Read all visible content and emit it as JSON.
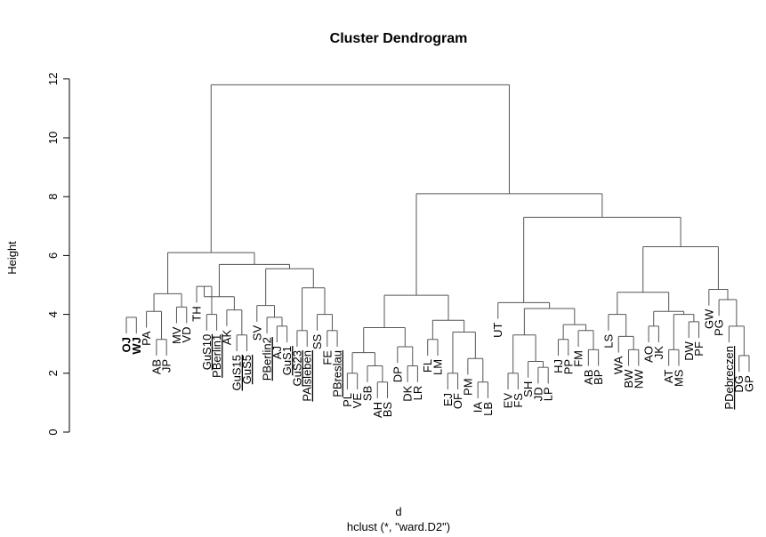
{
  "chart_data": {
    "type": "dendrogram",
    "title": "Cluster Dendrogram",
    "ylabel": "Height",
    "xlabel": "d",
    "sub": "hclust (*, \"ward.D2\")",
    "ylim": [
      0,
      12
    ],
    "yticks": [
      0,
      2,
      4,
      6,
      8,
      10,
      12
    ],
    "leaves": [
      {
        "label": "OJ",
        "style": "bold"
      },
      {
        "label": "WJ",
        "style": "bold"
      },
      {
        "label": "PA"
      },
      {
        "label": "AB"
      },
      {
        "label": "JP"
      },
      {
        "label": "MV"
      },
      {
        "label": "VD"
      },
      {
        "label": "TH"
      },
      {
        "label": "GuS10",
        "style": "underline"
      },
      {
        "label": "PBerlin1",
        "style": "underline"
      },
      {
        "label": "AK"
      },
      {
        "label": "GuS15",
        "style": "underline"
      },
      {
        "label": "GuS5",
        "style": "underline"
      },
      {
        "label": "SV"
      },
      {
        "label": "PBerlin2",
        "style": "underline"
      },
      {
        "label": "AJ"
      },
      {
        "label": "GuS1",
        "style": "underline"
      },
      {
        "label": "GuS23",
        "style": "underline"
      },
      {
        "label": "PAlsleben",
        "style": "underline"
      },
      {
        "label": "SS"
      },
      {
        "label": "FE"
      },
      {
        "label": "PBreslau",
        "style": "underline"
      },
      {
        "label": "PL"
      },
      {
        "label": "VE"
      },
      {
        "label": "SB"
      },
      {
        "label": "AH"
      },
      {
        "label": "BS"
      },
      {
        "label": "DP"
      },
      {
        "label": "DK"
      },
      {
        "label": "LR"
      },
      {
        "label": "FL"
      },
      {
        "label": "LM"
      },
      {
        "label": "EJ"
      },
      {
        "label": "OF"
      },
      {
        "label": "PM"
      },
      {
        "label": "IA"
      },
      {
        "label": "LB"
      },
      {
        "label": "UT"
      },
      {
        "label": "EV"
      },
      {
        "label": "FS"
      },
      {
        "label": "SH"
      },
      {
        "label": "JD"
      },
      {
        "label": "LP"
      },
      {
        "label": "HJ"
      },
      {
        "label": "PP"
      },
      {
        "label": "FM"
      },
      {
        "label": "AB"
      },
      {
        "label": "BP"
      },
      {
        "label": "LS"
      },
      {
        "label": "WA"
      },
      {
        "label": "BW"
      },
      {
        "label": "NW"
      },
      {
        "label": "AO"
      },
      {
        "label": "JK"
      },
      {
        "label": "AT"
      },
      {
        "label": "MS"
      },
      {
        "label": "DW"
      },
      {
        "label": "PF"
      },
      {
        "label": "GW"
      },
      {
        "label": "PG"
      },
      {
        "label": "PDebreczen",
        "style": "underline"
      },
      {
        "label": "DG"
      },
      {
        "label": "GP"
      }
    ],
    "merges": [
      {
        "id": "m1",
        "children": [
          "L0",
          "L1"
        ],
        "height": 3.9
      },
      {
        "id": "m2",
        "children": [
          "L3",
          "L4"
        ],
        "height": 3.15
      },
      {
        "id": "m3",
        "children": [
          "L2",
          "m2"
        ],
        "height": 4.1
      },
      {
        "id": "m4",
        "children": [
          "L5",
          "L6"
        ],
        "height": 4.25
      },
      {
        "id": "m5",
        "children": [
          "m3",
          "m4"
        ],
        "height": 4.7
      },
      {
        "id": "m6",
        "children": [
          "L8",
          "L9"
        ],
        "height": 4.0
      },
      {
        "id": "m7",
        "children": [
          "L7",
          "m6"
        ],
        "height": 4.95
      },
      {
        "id": "m8",
        "children": [
          "L11",
          "L12"
        ],
        "height": 3.3
      },
      {
        "id": "m9",
        "children": [
          "L10",
          "m8"
        ],
        "height": 4.15
      },
      {
        "id": "m10",
        "children": [
          "m7",
          "m9"
        ],
        "height": 4.6
      },
      {
        "id": "m11",
        "children": [
          "L15",
          "L16"
        ],
        "height": 3.6
      },
      {
        "id": "m12",
        "children": [
          "L14",
          "m11"
        ],
        "height": 3.9
      },
      {
        "id": "m13",
        "children": [
          "L13",
          "m12"
        ],
        "height": 4.3
      },
      {
        "id": "m14",
        "children": [
          "L17",
          "L18"
        ],
        "height": 3.45
      },
      {
        "id": "m15",
        "children": [
          "L20",
          "L21"
        ],
        "height": 3.45
      },
      {
        "id": "m16",
        "children": [
          "L19",
          "m15"
        ],
        "height": 4.0
      },
      {
        "id": "m17",
        "children": [
          "m14",
          "m16"
        ],
        "height": 4.9
      },
      {
        "id": "m18",
        "children": [
          "m13",
          "m17"
        ],
        "height": 5.55
      },
      {
        "id": "m19",
        "children": [
          "m10",
          "m18"
        ],
        "height": 5.7
      },
      {
        "id": "m20",
        "children": [
          "m5",
          "m19"
        ],
        "height": 6.1
      },
      {
        "id": "m21",
        "children": [
          "L22",
          "L23"
        ],
        "height": 2.0
      },
      {
        "id": "m22",
        "children": [
          "L25",
          "L26"
        ],
        "height": 1.7
      },
      {
        "id": "m23",
        "children": [
          "L24",
          "m22"
        ],
        "height": 2.25
      },
      {
        "id": "m24",
        "children": [
          "m21",
          "m23"
        ],
        "height": 2.7
      },
      {
        "id": "m25",
        "children": [
          "L28",
          "L29"
        ],
        "height": 2.25
      },
      {
        "id": "m26",
        "children": [
          "L27",
          "m25"
        ],
        "height": 2.9
      },
      {
        "id": "m27",
        "children": [
          "m24",
          "m26"
        ],
        "height": 3.55
      },
      {
        "id": "m28",
        "children": [
          "L30",
          "L31"
        ],
        "height": 3.15
      },
      {
        "id": "m29",
        "children": [
          "L32",
          "L33"
        ],
        "height": 2.0
      },
      {
        "id": "m30",
        "children": [
          "L35",
          "L36"
        ],
        "height": 1.7
      },
      {
        "id": "m31",
        "children": [
          "L34",
          "m30"
        ],
        "height": 2.5
      },
      {
        "id": "m32",
        "children": [
          "m29",
          "m31"
        ],
        "height": 3.4
      },
      {
        "id": "m33",
        "children": [
          "m28",
          "m32"
        ],
        "height": 3.8
      },
      {
        "id": "m34",
        "children": [
          "m27",
          "m33"
        ],
        "height": 4.65
      },
      {
        "id": "m35",
        "children": [
          "L38",
          "L39"
        ],
        "height": 2.0
      },
      {
        "id": "m36",
        "children": [
          "L41",
          "L42"
        ],
        "height": 2.2
      },
      {
        "id": "m37",
        "children": [
          "L40",
          "m36"
        ],
        "height": 2.4
      },
      {
        "id": "m38",
        "children": [
          "m35",
          "m37"
        ],
        "height": 3.3
      },
      {
        "id": "m39",
        "children": [
          "L43",
          "L44"
        ],
        "height": 3.15
      },
      {
        "id": "m40",
        "children": [
          "L46",
          "L47"
        ],
        "height": 2.8
      },
      {
        "id": "m41",
        "children": [
          "L45",
          "m40"
        ],
        "height": 3.45
      },
      {
        "id": "m42",
        "children": [
          "m39",
          "m41"
        ],
        "height": 3.65
      },
      {
        "id": "m43",
        "children": [
          "m38",
          "m42"
        ],
        "height": 4.2
      },
      {
        "id": "m44",
        "children": [
          "L37",
          "m43"
        ],
        "height": 4.4
      },
      {
        "id": "m45",
        "children": [
          "L50",
          "L51"
        ],
        "height": 2.8
      },
      {
        "id": "m46",
        "children": [
          "L49",
          "m45"
        ],
        "height": 3.25
      },
      {
        "id": "m47",
        "children": [
          "L48",
          "m46"
        ],
        "height": 4.0
      },
      {
        "id": "m48",
        "children": [
          "L52",
          "L53"
        ],
        "height": 3.6
      },
      {
        "id": "m49",
        "children": [
          "L54",
          "L55"
        ],
        "height": 2.8
      },
      {
        "id": "m50",
        "children": [
          "L56",
          "L57"
        ],
        "height": 3.75
      },
      {
        "id": "m51",
        "children": [
          "m49",
          "m50"
        ],
        "height": 4.0
      },
      {
        "id": "m52",
        "children": [
          "m48",
          "m51"
        ],
        "height": 4.1
      },
      {
        "id": "m53",
        "children": [
          "m47",
          "m52"
        ],
        "height": 4.75
      },
      {
        "id": "m54",
        "children": [
          "L61",
          "L62"
        ],
        "height": 2.6
      },
      {
        "id": "m55",
        "children": [
          "L60",
          "m54"
        ],
        "height": 3.6
      },
      {
        "id": "m56",
        "children": [
          "L59",
          "m55"
        ],
        "height": 4.5
      },
      {
        "id": "m57",
        "children": [
          "L58",
          "m56"
        ],
        "height": 4.85
      },
      {
        "id": "m58",
        "children": [
          "m53",
          "m57"
        ],
        "height": 6.3
      },
      {
        "id": "m59",
        "children": [
          "m44",
          "m58"
        ],
        "height": 7.3
      },
      {
        "id": "m60",
        "children": [
          "m34",
          "m59"
        ],
        "height": 8.1
      },
      {
        "id": "m61",
        "children": [
          "m20",
          "m60"
        ],
        "height": 11.8
      }
    ]
  }
}
